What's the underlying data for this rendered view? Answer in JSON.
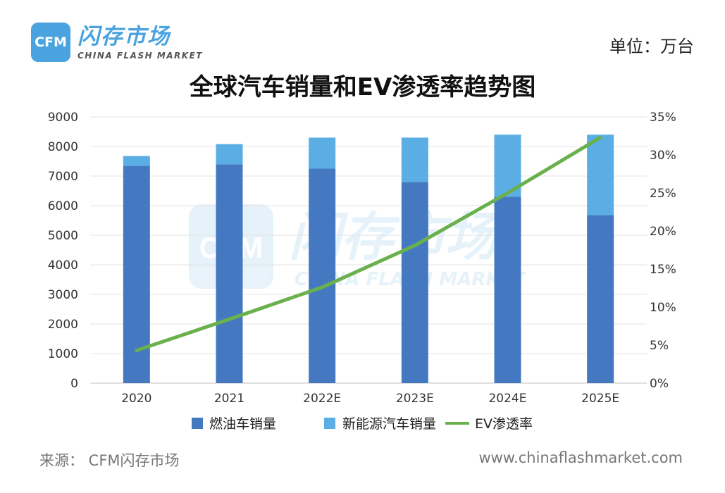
{
  "brand": {
    "logo_text": "CFM",
    "name_cn": "闪存市场",
    "name_en": "CHINA FLASH MARKET"
  },
  "unit_label": "单位：万台",
  "footer": {
    "source": "来源：  CFM闪存市场",
    "url": "www.chinaflashmarket.com"
  },
  "colors": {
    "fuel": "#4479c1",
    "nev": "#5baee3",
    "ev_line": "#6ab04c",
    "accent": "#4aa3df"
  },
  "chart_data": {
    "type": "bar",
    "title": "全球汽车销量和EV渗透率趋势图",
    "categories": [
      "2020",
      "2021",
      "2022E",
      "2023E",
      "2024E",
      "2025E"
    ],
    "stacked": true,
    "series": [
      {
        "name": "燃油车销量",
        "type": "bar",
        "axis": "left",
        "values": [
          7350,
          7400,
          7250,
          6800,
          6300,
          5680
        ]
      },
      {
        "name": "新能源汽车销量",
        "type": "bar",
        "axis": "left",
        "values": [
          330,
          680,
          1050,
          1500,
          2100,
          2720
        ]
      },
      {
        "name": "EV渗透率",
        "type": "line",
        "axis": "right",
        "values": [
          4.3,
          8.4,
          12.6,
          18.1,
          25.0,
          32.3
        ]
      }
    ],
    "y_left": {
      "ylim": [
        0,
        9000
      ],
      "ticks": [
        "0",
        "1000",
        "2000",
        "3000",
        "4000",
        "5000",
        "6000",
        "7000",
        "8000",
        "9000"
      ]
    },
    "y_right": {
      "ylim": [
        0,
        35
      ],
      "ticks": [
        "0%",
        "5%",
        "10%",
        "15%",
        "20%",
        "25%",
        "30%",
        "35%"
      ]
    },
    "legend": {
      "placement": "bottom"
    },
    "grid": true
  }
}
